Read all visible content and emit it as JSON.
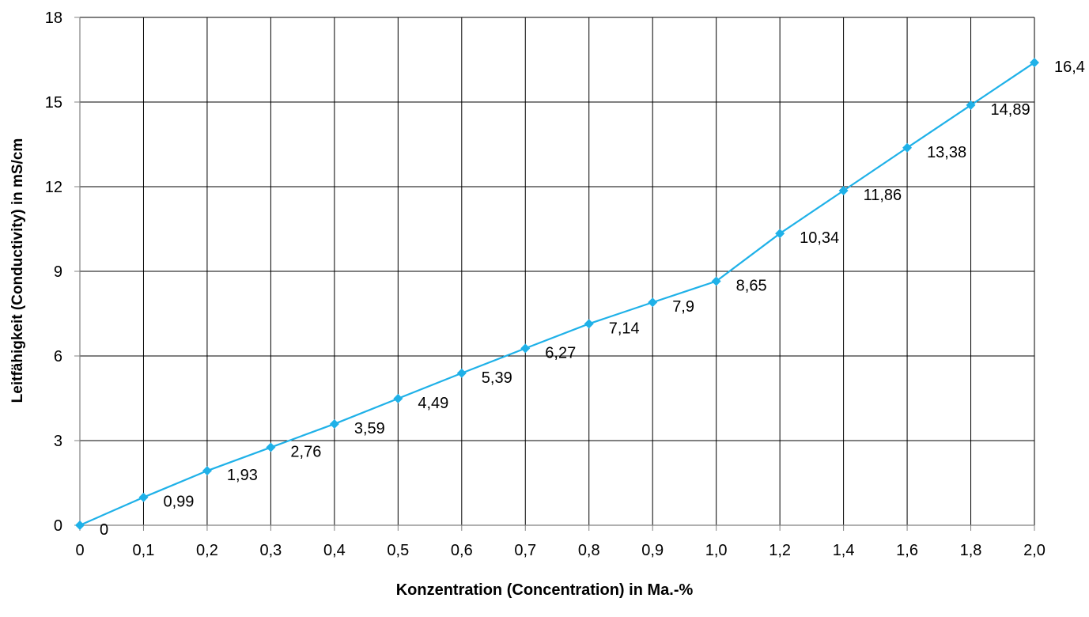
{
  "chart_data": {
    "type": "line",
    "title": "",
    "xlabel": "Konzentration (Concentration) in Ma.-%",
    "ylabel": "Leitfähigkeit (Conductivity) in mS/cm",
    "categories": [
      "0",
      "0,1",
      "0,2",
      "0,3",
      "0,4",
      "0,5",
      "0,6",
      "0,7",
      "0,8",
      "0,9",
      "1,0",
      "1,2",
      "1,4",
      "1,6",
      "1,8",
      "2,0"
    ],
    "series": [
      {
        "values": [
          0,
          0.99,
          1.93,
          2.76,
          3.59,
          4.49,
          5.39,
          6.27,
          7.14,
          7.9,
          8.65,
          10.34,
          11.86,
          13.38,
          14.89,
          16.4
        ],
        "data_labels": [
          "0",
          "0,99",
          "1,93",
          "2,76",
          "3,59",
          "4,49",
          "5,39",
          "6,27",
          "7,14",
          "7,9",
          "8,65",
          "10,34",
          "11,86",
          "13,38",
          "14,89",
          "16,4"
        ],
        "color": "#1fb1e8"
      }
    ],
    "ylim": [
      0,
      18
    ],
    "yticks": [
      "0",
      "3",
      "6",
      "9",
      "12",
      "15",
      "18"
    ],
    "grid": true,
    "legend": "none",
    "colors": {
      "line": "#1fb1e8",
      "grid": "#000000",
      "axis": "#808080"
    }
  }
}
